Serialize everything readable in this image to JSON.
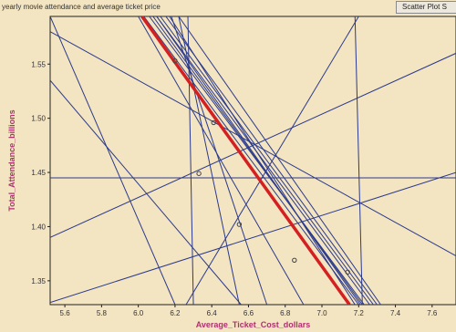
{
  "window": {
    "title": "yearly movie attendance and average ticket price",
    "tab_label": "Scatter Plot S"
  },
  "chart_data": {
    "type": "scatter",
    "xlabel": "Average_Ticket_Cost_dollars",
    "ylabel": "Total_Attendance_billions",
    "xlim": [
      5.52,
      7.73
    ],
    "ylim": [
      1.328,
      1.594
    ],
    "x_ticks": [
      5.6,
      5.8,
      6.0,
      6.2,
      6.4,
      6.6,
      6.8,
      7.0,
      7.2,
      7.4,
      7.6
    ],
    "y_ticks": [
      1.35,
      1.4,
      1.45,
      1.5,
      1.55
    ],
    "points": [
      {
        "x": 6.2,
        "y": 1.553
      },
      {
        "x": 6.41,
        "y": 1.496
      },
      {
        "x": 6.33,
        "y": 1.449
      },
      {
        "x": 6.55,
        "y": 1.402
      },
      {
        "x": 6.85,
        "y": 1.369
      },
      {
        "x": 7.14,
        "y": 1.358
      }
    ],
    "fit_line": {
      "x": [
        6.02,
        7.15
      ],
      "y": [
        1.594,
        1.328
      ],
      "color": "#d42020"
    },
    "trial_lines": [
      {
        "x": [
          6.03,
          7.2
        ],
        "y": [
          1.594,
          1.328
        ]
      },
      {
        "x": [
          6.06,
          7.23
        ],
        "y": [
          1.594,
          1.328
        ]
      },
      {
        "x": [
          6.08,
          7.22
        ],
        "y": [
          1.594,
          1.328
        ]
      },
      {
        "x": [
          6.1,
          7.26
        ],
        "y": [
          1.594,
          1.328
        ]
      },
      {
        "x": [
          6.12,
          7.28
        ],
        "y": [
          1.594,
          1.328
        ]
      },
      {
        "x": [
          6.15,
          7.3
        ],
        "y": [
          1.594,
          1.328
        ]
      },
      {
        "x": [
          6.22,
          7.32
        ],
        "y": [
          1.594,
          1.328
        ]
      },
      {
        "x": [
          6.1,
          7.21
        ],
        "y": [
          1.594,
          1.328
        ]
      },
      {
        "x": [
          6.17,
          7.18
        ],
        "y": [
          1.594,
          1.328
        ]
      },
      {
        "x": [
          6.0,
          6.9
        ],
        "y": [
          1.594,
          1.328
        ]
      },
      {
        "x": [
          5.52,
          6.2
        ],
        "y": [
          1.594,
          1.328
        ]
      },
      {
        "x": [
          5.52,
          6.56
        ],
        "y": [
          1.535,
          1.328
        ]
      },
      {
        "x": [
          5.52,
          7.73
        ],
        "y": [
          1.58,
          1.373
        ]
      },
      {
        "x": [
          5.52,
          7.73
        ],
        "y": [
          1.445,
          1.445
        ]
      },
      {
        "x": [
          5.52,
          7.73
        ],
        "y": [
          1.39,
          1.56
        ]
      },
      {
        "x": [
          5.52,
          7.73
        ],
        "y": [
          1.33,
          1.45
        ]
      },
      {
        "x": [
          6.27,
          6.3
        ],
        "y": [
          1.594,
          1.328
        ]
      },
      {
        "x": [
          7.18,
          7.22
        ],
        "y": [
          1.594,
          1.328
        ]
      },
      {
        "x": [
          6.26,
          7.2
        ],
        "y": [
          1.328,
          1.594
        ]
      },
      {
        "x": [
          6.55,
          6.22
        ],
        "y": [
          1.328,
          1.594
        ]
      },
      {
        "x": [
          6.18,
          6.7
        ],
        "y": [
          1.594,
          1.328
        ]
      }
    ],
    "colors": {
      "fit": "#d42020",
      "trial": "#2b3a8c",
      "point": "#444444",
      "frame": "#222222"
    }
  }
}
